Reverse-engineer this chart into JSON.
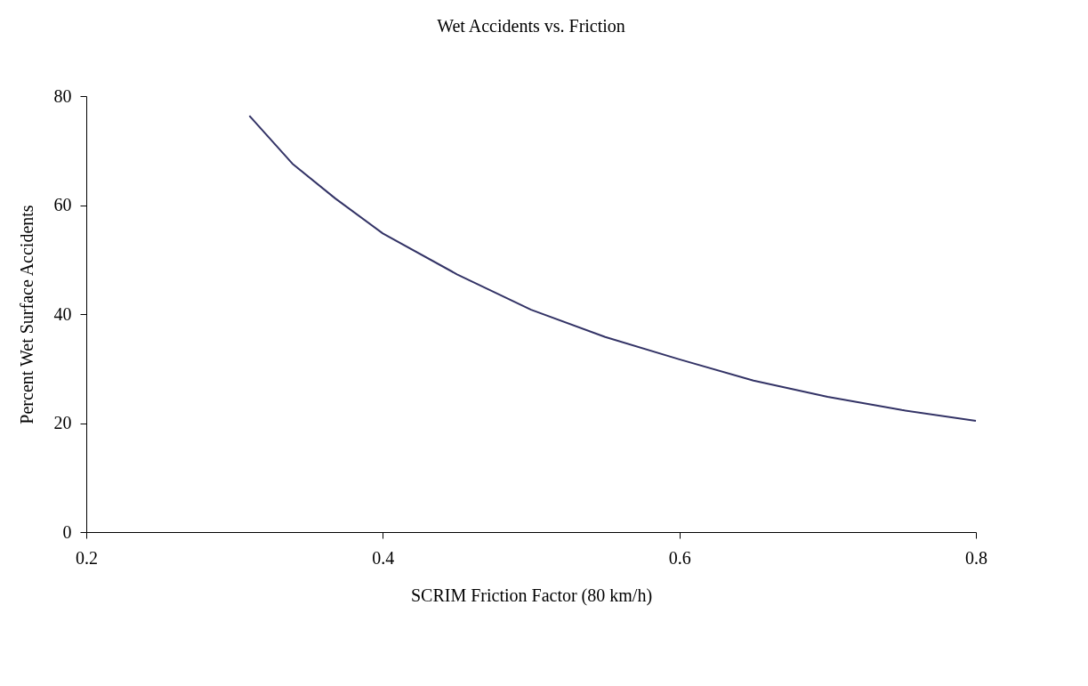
{
  "chart_data": {
    "type": "line",
    "title": "Wet Accidents vs. Friction",
    "xlabel": "SCRIM Friction Factor (80 km/h)",
    "ylabel": "Percent Wet Surface Accidents",
    "x": [
      0.31,
      0.339,
      0.368,
      0.4,
      0.45,
      0.5,
      0.55,
      0.6,
      0.65,
      0.7,
      0.75,
      0.8
    ],
    "series": [
      {
        "color": "#333366",
        "values": [
          76.4,
          67.6,
          61.2,
          54.8,
          47.3,
          40.8,
          35.8,
          31.7,
          27.8,
          24.8,
          22.4,
          20.4
        ]
      }
    ],
    "xlim": [
      0.2,
      0.8
    ],
    "xticks": [
      0.2,
      0.4,
      0.6,
      0.8
    ],
    "ylim": [
      0,
      80
    ],
    "yticks": [
      0,
      20,
      40,
      60,
      80
    ],
    "grid": false,
    "legend": false,
    "marker": "none",
    "line_style": "solid"
  }
}
